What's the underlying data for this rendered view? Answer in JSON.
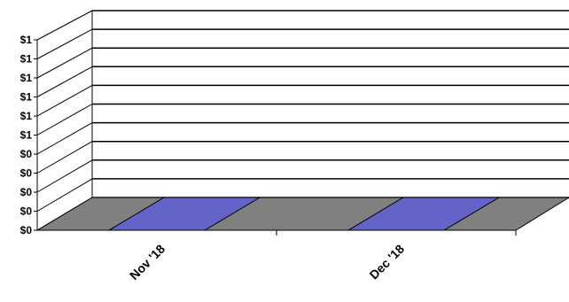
{
  "chart_data": {
    "type": "bar",
    "categories": [
      "Nov '18",
      "Dec '18"
    ],
    "values": [
      0,
      0
    ],
    "y_tick_labels": [
      "$0",
      "$0",
      "$0",
      "$0",
      "$0",
      "$1",
      "$1",
      "$1",
      "$1",
      "$1",
      "$1"
    ],
    "ylim": [
      0,
      1
    ],
    "grid": true,
    "legend": "none",
    "colors": {
      "bar": "#6464c8",
      "floor": "#808080",
      "grid": "#000000"
    }
  }
}
